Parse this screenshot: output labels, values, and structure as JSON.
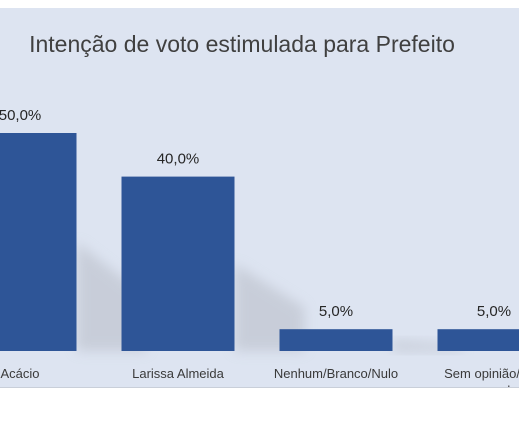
{
  "chart_data": {
    "type": "bar",
    "title": "Intenção de voto estimulada para Prefeito",
    "categories": [
      [
        "Acácio"
      ],
      [
        "Larissa Almeida"
      ],
      [
        "Nenhum/Branco/Nulo"
      ],
      [
        "Sem opinião/Não",
        "respondeu"
      ]
    ],
    "values": [
      50.0,
      40.0,
      5.0,
      5.0
    ],
    "value_labels": [
      "50,0%",
      "40,0%",
      "5,0%",
      "5,0%"
    ],
    "ylim": [
      0,
      60
    ],
    "grid": false,
    "legend": "none",
    "colors": {
      "bar": "#2e5597",
      "background": "#dde4f1",
      "shadow": "#b7bcc6"
    }
  }
}
